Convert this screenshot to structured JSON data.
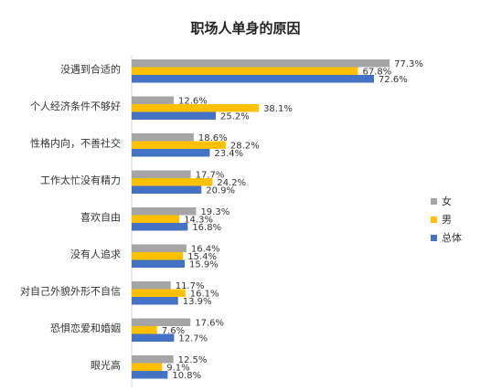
{
  "chart_data": {
    "type": "bar",
    "orientation": "horizontal",
    "title": "职场人单身的原因",
    "categories": [
      "没遇到合适的",
      "个人经济条件不够好",
      "性格内向，不善社交",
      "工作太忙没有精力",
      "喜欢自由",
      "没有人追求",
      "对自己外貌外形不自信",
      "恐惧恋爱和婚姻",
      "眼光高"
    ],
    "series": [
      {
        "name": "女",
        "color": "#A5A5A5",
        "values": [
          77.3,
          12.6,
          18.6,
          17.7,
          19.3,
          16.4,
          11.7,
          17.6,
          12.5
        ],
        "labels": [
          "77.3%",
          "12.6%",
          "18.6%",
          "17.7%",
          "19.3%",
          "16.4%",
          "11.7%",
          "17.6%",
          "12.5%"
        ]
      },
      {
        "name": "男",
        "color": "#FFC000",
        "values": [
          67.8,
          38.1,
          28.2,
          24.2,
          14.3,
          15.4,
          16.1,
          7.6,
          9.1
        ],
        "labels": [
          "67.8%",
          "38.1%",
          "28.2%",
          "24.2%",
          "14.3%",
          "15.4%",
          "16.1%",
          "7.6%",
          "9.1%"
        ]
      },
      {
        "name": "总体",
        "color": "#4472C4",
        "values": [
          72.6,
          25.2,
          23.4,
          20.9,
          16.8,
          15.9,
          13.9,
          12.7,
          10.8
        ],
        "labels": [
          "72.6%",
          "25.2%",
          "23.4%",
          "20.9%",
          "16.8%",
          "15.9%",
          "13.9%",
          "12.7%",
          "10.8%"
        ]
      }
    ],
    "xlim": [
      0,
      100
    ],
    "grid": false,
    "legend_position": "right"
  }
}
